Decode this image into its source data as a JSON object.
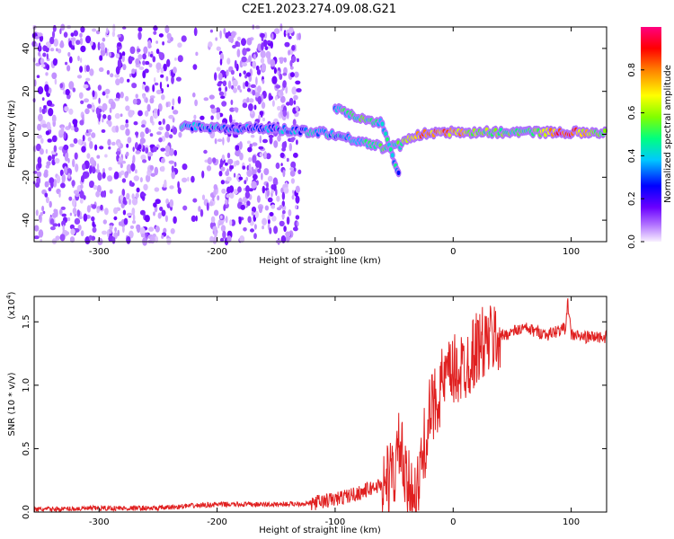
{
  "title": "C2E1.2023.274.09.08.G21",
  "chart_data": [
    {
      "type": "heatmap",
      "xlabel": "Height of straight line (km)",
      "ylabel": "Frequency (Hz)",
      "xlim": [
        -355,
        130
      ],
      "ylim": [
        -50,
        50
      ],
      "x_ticks": [
        -300,
        -200,
        -100,
        0,
        100
      ],
      "y_ticks": [
        -40,
        -20,
        0,
        20,
        40
      ],
      "colorbar": {
        "label": "Normalized spectral amplitude",
        "range": [
          0,
          1
        ],
        "ticks": [
          "0.0",
          "0.2",
          "0.4",
          "0.6",
          "0.8"
        ],
        "tick_values": [
          0.0,
          0.2,
          0.4,
          0.6,
          0.8
        ],
        "colors": [
          "#f8f0ff",
          "#b070ff",
          "#6a00ff",
          "#0000ff",
          "#00c8ff",
          "#00ff80",
          "#80ff00",
          "#ffff00",
          "#ff8000",
          "#ff0000",
          "#ff0080"
        ]
      },
      "noise_region_x": [
        -355,
        -130
      ],
      "track": [
        {
          "x": -230,
          "y": 4,
          "amp": 0.35
        },
        {
          "x": -200,
          "y": 3,
          "amp": 0.35
        },
        {
          "x": -170,
          "y": 3,
          "amp": 0.3
        },
        {
          "x": -140,
          "y": 2,
          "amp": 0.35
        },
        {
          "x": -110,
          "y": 1,
          "amp": 0.4
        },
        {
          "x": -80,
          "y": -3,
          "amp": 0.45
        },
        {
          "x": -60,
          "y": -6,
          "amp": 0.5
        },
        {
          "x": -45,
          "y": -5,
          "amp": 0.5
        },
        {
          "x": -30,
          "y": 0,
          "amp": 0.8
        },
        {
          "x": 0,
          "y": 1,
          "amp": 0.75
        },
        {
          "x": 30,
          "y": 1,
          "amp": 0.55
        },
        {
          "x": 60,
          "y": 1,
          "amp": 0.5
        },
        {
          "x": 95,
          "y": 1,
          "amp": 0.9
        },
        {
          "x": 130,
          "y": 1,
          "amp": 0.5
        }
      ],
      "upper_track": [
        {
          "x": -100,
          "y": 12,
          "amp": 0.45
        },
        {
          "x": -80,
          "y": 8,
          "amp": 0.5
        },
        {
          "x": -60,
          "y": 5,
          "amp": 0.45
        },
        {
          "x": -50,
          "y": -12,
          "amp": 0.4
        },
        {
          "x": -45,
          "y": -20,
          "amp": 0.4
        }
      ]
    },
    {
      "type": "line",
      "xlabel": "Height of straight line (km)",
      "ylabel": "SNR (10 * v/v)",
      "y_multiplier": "(x10",
      "y_multiplier_exp": "4",
      "y_multiplier_close": ")",
      "xlim": [
        -355,
        130
      ],
      "ylim": [
        0,
        1.7
      ],
      "x_ticks": [
        -300,
        -200,
        -100,
        0,
        100
      ],
      "y_ticks": [
        "0.0",
        "0.5",
        "1.0",
        "1.5"
      ],
      "y_tick_values": [
        0.0,
        0.5,
        1.0,
        1.5
      ],
      "series": [
        {
          "color": "#e02020",
          "x": [
            -355,
            -300,
            -250,
            -220,
            -200,
            -150,
            -120,
            -100,
            -80,
            -60,
            -50,
            -45,
            -40,
            -30,
            -25,
            -20,
            -10,
            0,
            10,
            20,
            30,
            50,
            60,
            80,
            95,
            97,
            100,
            110,
            130
          ],
          "y": [
            0.02,
            0.03,
            0.03,
            0.05,
            0.06,
            0.06,
            0.07,
            0.1,
            0.15,
            0.22,
            0.3,
            0.55,
            0.2,
            0.15,
            0.5,
            0.75,
            1.0,
            1.1,
            1.15,
            1.3,
            1.35,
            1.42,
            1.45,
            1.4,
            1.45,
            1.65,
            1.4,
            1.38,
            1.38
          ]
        }
      ]
    }
  ]
}
